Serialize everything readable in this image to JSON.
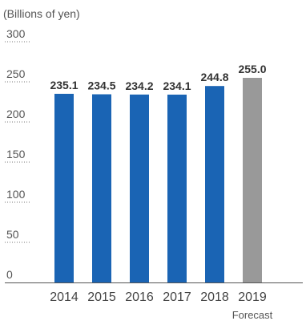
{
  "chart_data": {
    "type": "bar",
    "unit_label": "(Billions of yen)",
    "categories": [
      "2014",
      "2015",
      "2016",
      "2017",
      "2018",
      "2019"
    ],
    "values": [
      235.1,
      234.5,
      234.2,
      234.1,
      244.8,
      255.0
    ],
    "value_labels": [
      "235.1",
      "234.5",
      "234.2",
      "234.1",
      "244.8",
      "255.0"
    ],
    "category_notes": [
      "",
      "",
      "",
      "",
      "",
      "Forecast"
    ],
    "yticks": [
      "0",
      "50",
      "100",
      "150",
      "200",
      "250",
      "300"
    ],
    "ytick_values": [
      0,
      50,
      100,
      150,
      200,
      250,
      300
    ],
    "ylim": [
      0,
      300
    ],
    "bar_colors": [
      "#1a64b4",
      "#1a64b4",
      "#1a64b4",
      "#1a64b4",
      "#1a64b4",
      "#999999"
    ],
    "grid": false,
    "legend": "none"
  }
}
